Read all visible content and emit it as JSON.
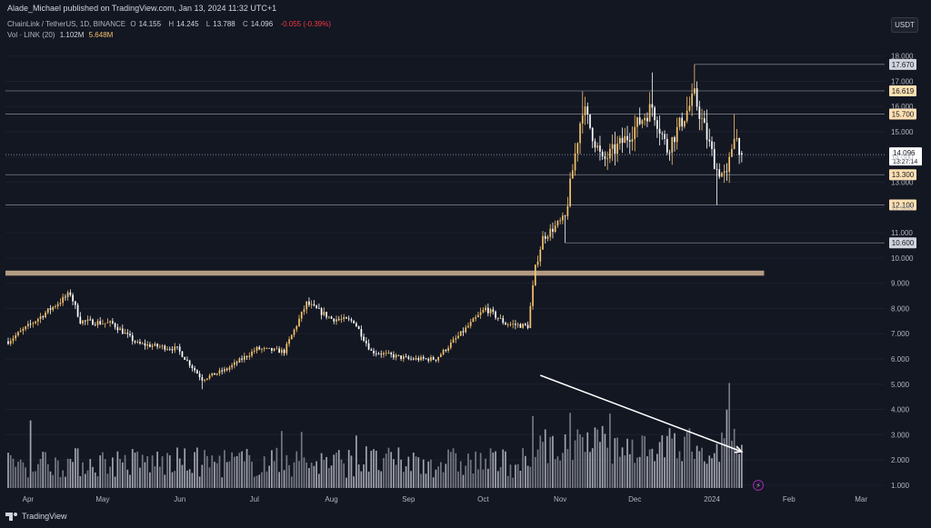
{
  "header": {
    "publisher": "Alade_Michael published on TradingView.com, Jan 13, 2024 11:32 UTC+1",
    "symbol": "ChainLink / TetherUS, 1D, BINANCE",
    "o_label": "O",
    "o_value": "14.155",
    "h_label": "H",
    "h_value": "14.245",
    "l_label": "L",
    "l_value": "13.788",
    "c_label": "C",
    "c_value": "14.096",
    "change": "-0.055 (-0.39%)",
    "vol_label": "Vol · LINK (20)",
    "vol_value": "1.102M",
    "vol_ma_value": "5.648M"
  },
  "currency": "USDT",
  "footer": {
    "brand": "TradingView"
  },
  "colors": {
    "background": "#131722",
    "up": "#f5c26b",
    "down": "#ffffff",
    "level_line": "#787b86",
    "zone": "#b39b83",
    "label_bg": "#ffe0b2",
    "arrow": "#ffffff"
  },
  "chart_data": {
    "type": "candlestick",
    "symbol": "LINK/USDT",
    "timeframe": "1D",
    "ylim": [
      0.6,
      18.6
    ],
    "y_ticks": [
      "1.000",
      "2.000",
      "3.000",
      "4.000",
      "5.000",
      "6.000",
      "7.000",
      "8.000",
      "9.000",
      "10.000",
      "11.000",
      "12.000",
      "13.000",
      "14.000",
      "15.000",
      "16.000",
      "17.000",
      "18.000"
    ],
    "x_ticks": [
      "Apr",
      "May",
      "Jun",
      "Jul",
      "Aug",
      "Sep",
      "Oct",
      "Nov",
      "Dec",
      "2024",
      "Feb",
      "Mar"
    ],
    "price_anchors": [
      {
        "date": "2023-03-24",
        "close": 6.7
      },
      {
        "date": "2023-04-05",
        "close": 7.6
      },
      {
        "date": "2023-04-18",
        "close": 8.6
      },
      {
        "date": "2023-04-22",
        "close": 7.5
      },
      {
        "date": "2023-05-05",
        "close": 7.4
      },
      {
        "date": "2023-05-15",
        "close": 6.6
      },
      {
        "date": "2023-05-31",
        "close": 6.4
      },
      {
        "date": "2023-06-10",
        "close": 5.2
      },
      {
        "date": "2023-06-20",
        "close": 5.6
      },
      {
        "date": "2023-07-02",
        "close": 6.4
      },
      {
        "date": "2023-07-13",
        "close": 6.3
      },
      {
        "date": "2023-07-22",
        "close": 8.2
      },
      {
        "date": "2023-08-01",
        "close": 7.6
      },
      {
        "date": "2023-08-10",
        "close": 7.5
      },
      {
        "date": "2023-08-17",
        "close": 6.3
      },
      {
        "date": "2023-09-01",
        "close": 6.0
      },
      {
        "date": "2023-09-12",
        "close": 6.0
      },
      {
        "date": "2023-09-25",
        "close": 7.3
      },
      {
        "date": "2023-10-02",
        "close": 8.0
      },
      {
        "date": "2023-10-10",
        "close": 7.4
      },
      {
        "date": "2023-10-19",
        "close": 7.3
      },
      {
        "date": "2023-10-22",
        "close": 9.6
      },
      {
        "date": "2023-10-25",
        "close": 10.8
      },
      {
        "date": "2023-11-03",
        "close": 11.6
      },
      {
        "date": "2023-11-10",
        "close": 16.0
      },
      {
        "date": "2023-11-18",
        "close": 13.8
      },
      {
        "date": "2023-11-28",
        "close": 14.8
      },
      {
        "date": "2023-12-08",
        "close": 16.0
      },
      {
        "date": "2023-12-14",
        "close": 14.3
      },
      {
        "date": "2023-12-25",
        "close": 16.4
      },
      {
        "date": "2024-01-03",
        "close": 13.5
      },
      {
        "date": "2024-01-07",
        "close": 13.2
      },
      {
        "date": "2024-01-10",
        "close": 15.0
      },
      {
        "date": "2024-01-13",
        "close": 14.096
      }
    ],
    "last_candle": {
      "open": 14.155,
      "high": 14.245,
      "low": 13.788,
      "close": 14.096
    },
    "levels": [
      {
        "value": 17.67,
        "label": "17.670",
        "style": "gray"
      },
      {
        "value": 16.619,
        "label": "16.619",
        "style": "orange"
      },
      {
        "value": 15.7,
        "label": "15.700",
        "style": "orange"
      },
      {
        "value": 13.3,
        "label": "13.300",
        "style": "orange"
      },
      {
        "value": 12.1,
        "label": "12.100",
        "style": "orange"
      },
      {
        "value": 10.6,
        "label": "10.600",
        "style": "gray"
      }
    ],
    "current_price": {
      "value": 14.096,
      "label": "14.096",
      "countdown": "13:27:14"
    },
    "zone": {
      "low": 9.3,
      "high": 9.5
    },
    "volume_trendline": {
      "from_date": "2023-10-24",
      "to_date": "2024-01-13",
      "note": "declining volume arrow"
    }
  }
}
